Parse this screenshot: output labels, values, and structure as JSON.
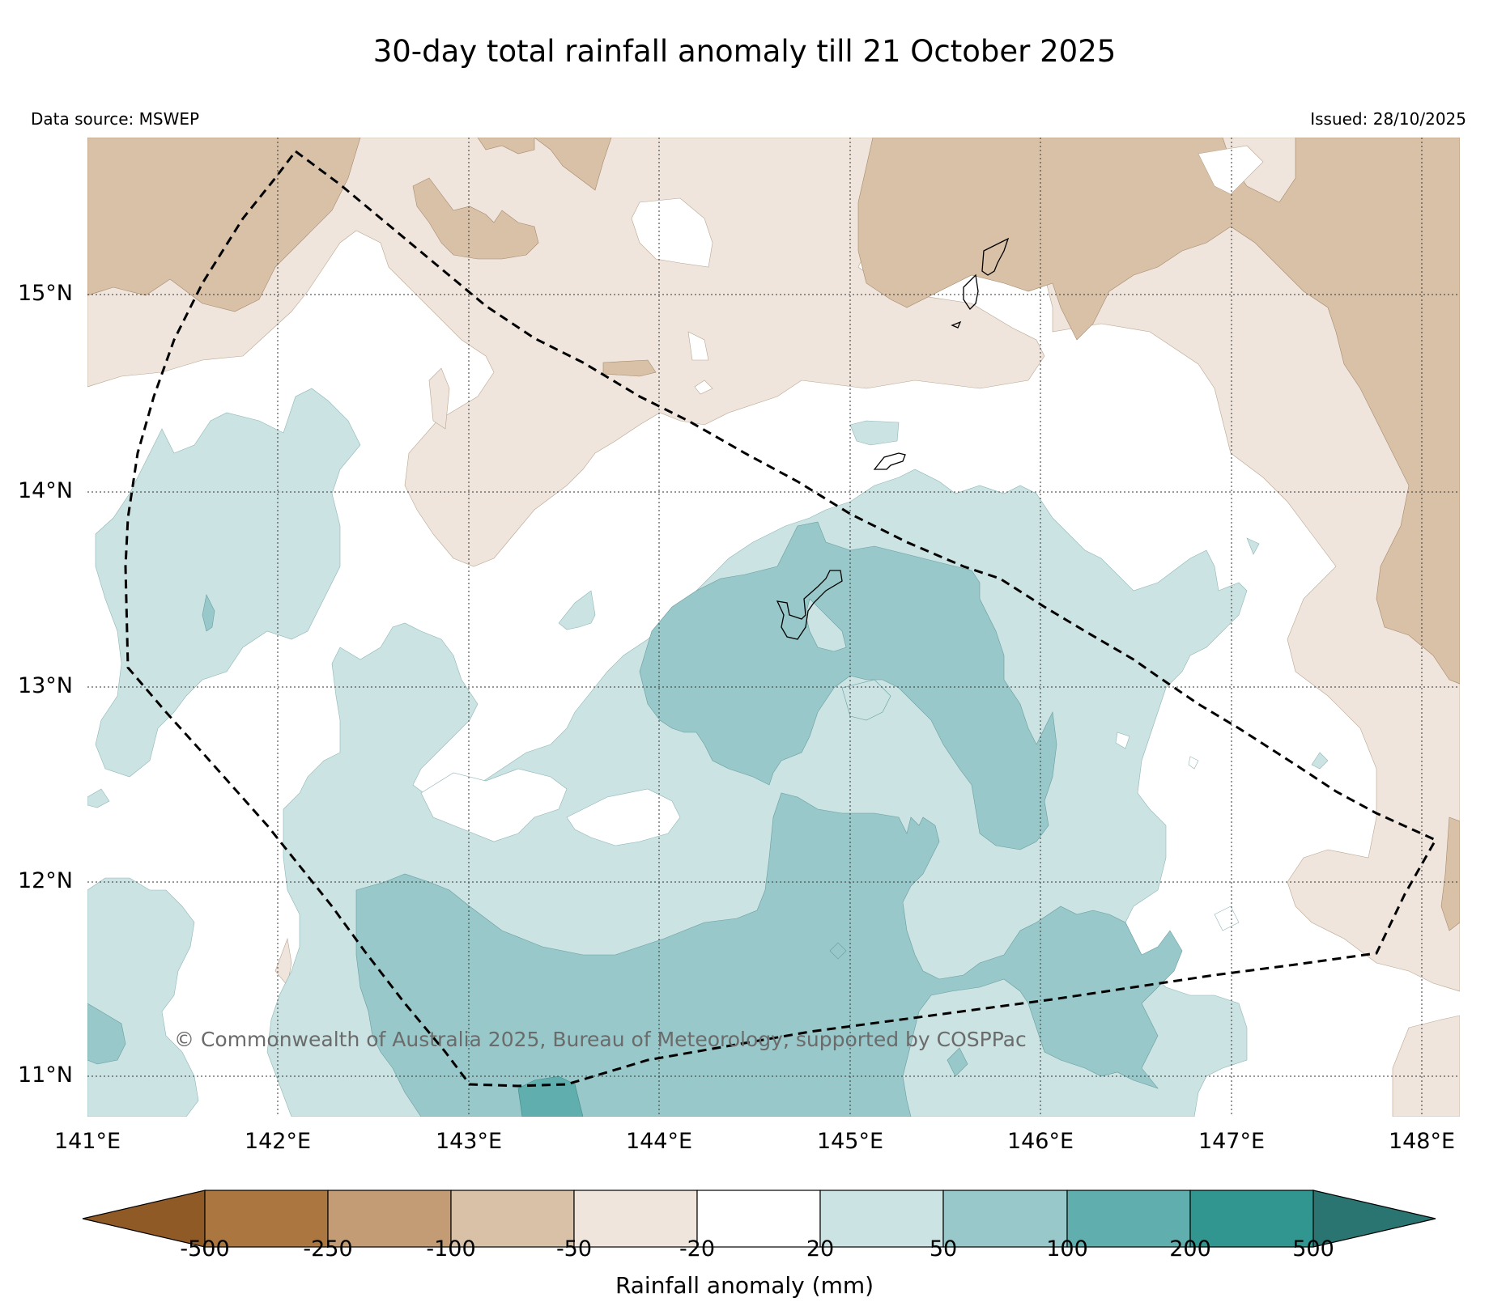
{
  "title": "30-day total rainfall anomaly till 21 October 2025",
  "data_source": "Data source: MSWEP",
  "issued": "Issued: 28/10/2025",
  "copyright": "© Commonwealth of Australia 2025, Bureau of Meteorology, supported by COSPPac",
  "map": {
    "lon_range": [
      141.0,
      148.2
    ],
    "lat_range": [
      10.8,
      15.82
    ],
    "lon_ticks": [
      "141°E",
      "142°E",
      "143°E",
      "144°E",
      "145°E",
      "146°E",
      "147°E",
      "148°E"
    ],
    "lat_ticks": [
      "15°N",
      "14°N",
      "13°N",
      "12°N",
      "11°N"
    ],
    "gridlines": true
  },
  "colorbar": {
    "label": "Rainfall anomaly (mm)",
    "ticks": [
      "-500",
      "-250",
      "-100",
      "-50",
      "-20",
      "20",
      "50",
      "100",
      "200",
      "500"
    ],
    "colors": [
      "#8f5a25",
      "#ab763f",
      "#c39b74",
      "#d9c1a8",
      "#efe5dc",
      "#ffffff",
      "#cbe3e3",
      "#98c8c9",
      "#61aeae",
      "#31968f",
      "#2a7571"
    ],
    "extend": "both"
  },
  "legend_colors": {
    "dry_strong": "#d9c1a8",
    "dry_weak": "#efe5dc",
    "neutral": "#ffffff",
    "wet_weak": "#cbe3e3",
    "wet_mid": "#98c8c9",
    "wet_strong": "#61aeae"
  }
}
